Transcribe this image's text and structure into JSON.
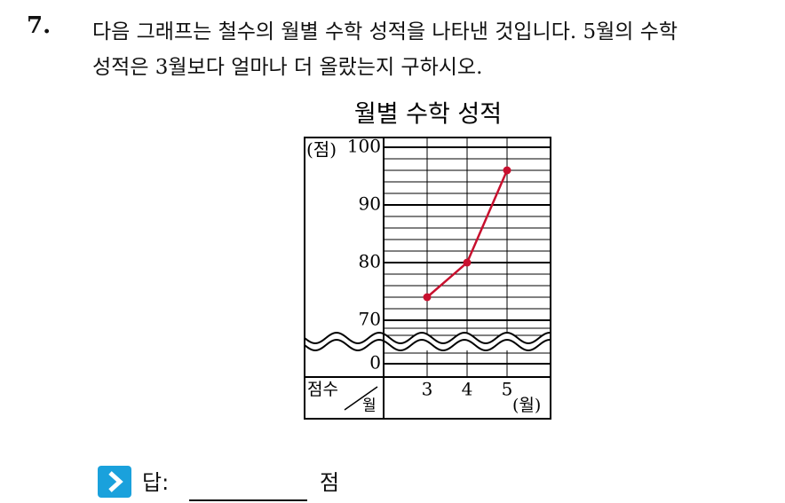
{
  "question": {
    "number": "7.",
    "lines": [
      "다음 그래프는 철수의 월별 수학 성적을 나타낸 것입니다. 5월의 수학",
      "성적은 3월보다 얼마나 더 올랐는지 구하시오."
    ]
  },
  "chart_data": {
    "type": "line",
    "title": "월별 수학 성적",
    "y_unit": "(점)",
    "x_unit": "(월)",
    "corner_y": "점수",
    "corner_x": "월",
    "categories": [
      "3",
      "4",
      "5"
    ],
    "values": [
      74,
      80,
      96
    ],
    "color": "#c8102e",
    "ylim": [
      70,
      100
    ],
    "yticks": [
      0,
      70,
      80,
      90,
      100
    ],
    "axis_break": true,
    "grid": true
  },
  "answer": {
    "label": "답:",
    "unit": "점"
  }
}
